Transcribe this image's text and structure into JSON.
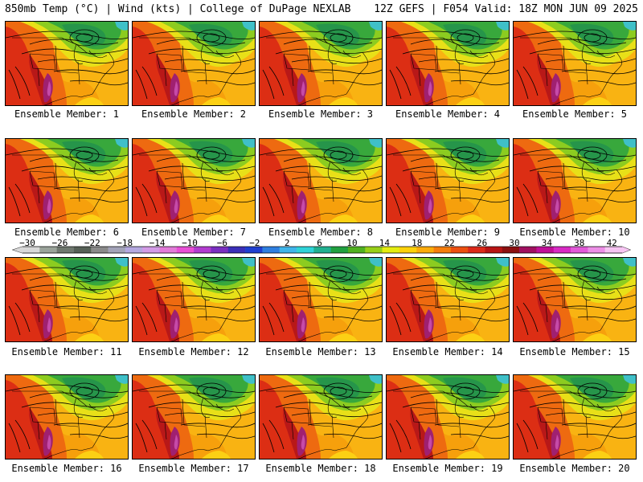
{
  "header": {
    "left": "850mb Temp (°C) | Wind (kts) | College of DuPage NEXLAB",
    "right": "12Z GEFS | F054 Valid: 18Z MON JUN 09 2025"
  },
  "members": [
    "Ensemble Member: 1",
    "Ensemble Member: 2",
    "Ensemble Member: 3",
    "Ensemble Member: 4",
    "Ensemble Member: 5",
    "Ensemble Member: 6",
    "Ensemble Member: 7",
    "Ensemble Member: 8",
    "Ensemble Member: 9",
    "Ensemble Member: 10",
    "Ensemble Member: 11",
    "Ensemble Member: 12",
    "Ensemble Member: 13",
    "Ensemble Member: 14",
    "Ensemble Member: 15",
    "Ensemble Member: 16",
    "Ensemble Member: 17",
    "Ensemble Member: 18",
    "Ensemble Member: 19",
    "Ensemble Member: 20"
  ],
  "colorbar": {
    "ticks": [
      "−30",
      "−26",
      "−22",
      "−18",
      "−14",
      "−10",
      "−6",
      "−2",
      "2",
      "6",
      "10",
      "14",
      "18",
      "22",
      "26",
      "30",
      "34",
      "38",
      "42"
    ],
    "colors": [
      "#d8d8d8",
      "#9aa39a",
      "#6f786f",
      "#566056",
      "#8a8a8a",
      "#a3a3b8",
      "#b4a8e0",
      "#d39be6",
      "#e27bd8",
      "#e84fd6",
      "#b23cd0",
      "#7a2fc0",
      "#3b2fb8",
      "#1f3fd0",
      "#2f7fe0",
      "#3fb5ea",
      "#2fd3d8",
      "#20b090",
      "#20a040",
      "#50b020",
      "#98cf18",
      "#e4ec10",
      "#fcd20a",
      "#fbab0a",
      "#f57d0c",
      "#ec4f10",
      "#dc2a1a",
      "#b81414",
      "#8c1010",
      "#a01060",
      "#c01098",
      "#d82ac4",
      "#e25ad8",
      "#ec8fe6",
      "#f6c4f2"
    ]
  }
}
